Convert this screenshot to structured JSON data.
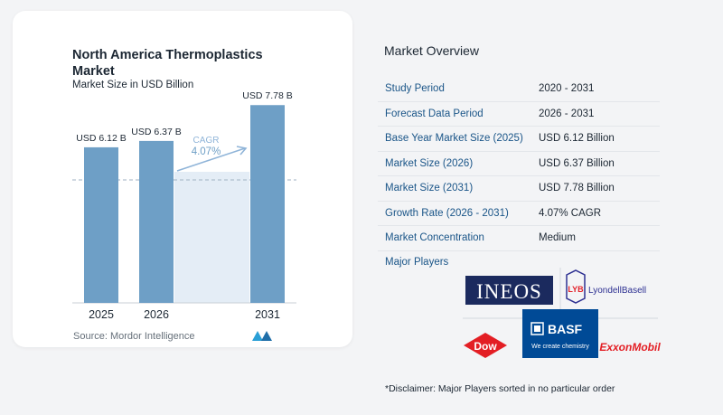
{
  "chart_data": {
    "type": "bar",
    "title": "North America Thermoplastics Market",
    "subtitle": "Market Size in USD Billion",
    "categories": [
      "2025",
      "2026",
      "2031"
    ],
    "values": [
      6.12,
      6.37,
      7.78
    ],
    "value_labels": [
      "USD 6.12 B",
      "USD 6.37 B",
      "USD 7.78 B"
    ],
    "cagr_label": "CAGR",
    "cagr_value": "4.07%",
    "ylim": [
      0,
      8.5
    ],
    "grid": false,
    "colors": {
      "bar": "#6e9fc6",
      "highlight_bg": "#e4edf6",
      "dash": "#9fb2c3",
      "cagr": "#8fb4d8"
    }
  },
  "source": "Source:  Mordor Intelligence",
  "brand_logo": "mordor-intelligence-logo",
  "overview": {
    "title": "Market Overview",
    "rows": [
      {
        "label": "Study Period",
        "value": "2020 - 2031"
      },
      {
        "label": "Forecast Data Period",
        "value": "2026 - 2031"
      },
      {
        "label": "Base Year Market Size (2025)",
        "value": "USD 6.12 Billion"
      },
      {
        "label": "Market Size (2026)",
        "value": "USD 6.37 Billion"
      },
      {
        "label": "Market Size (2031)",
        "value": "USD 7.78 Billion"
      },
      {
        "label": "Growth Rate (2026 - 2031)",
        "value": "4.07% CAGR"
      },
      {
        "label": "Market Concentration",
        "value": "Medium"
      }
    ]
  },
  "players": {
    "title": "Major Players",
    "logos": {
      "ineos": "INEOS",
      "lyb_mark": "LYB",
      "lyb_name": "LyondellBasell",
      "dow": "Dow",
      "basf": "BASF",
      "basf_tagline": "We create chemistry",
      "exxon": "ExxonMobil"
    }
  },
  "disclaimer": "*Disclaimer: Major Players sorted in no particular order"
}
